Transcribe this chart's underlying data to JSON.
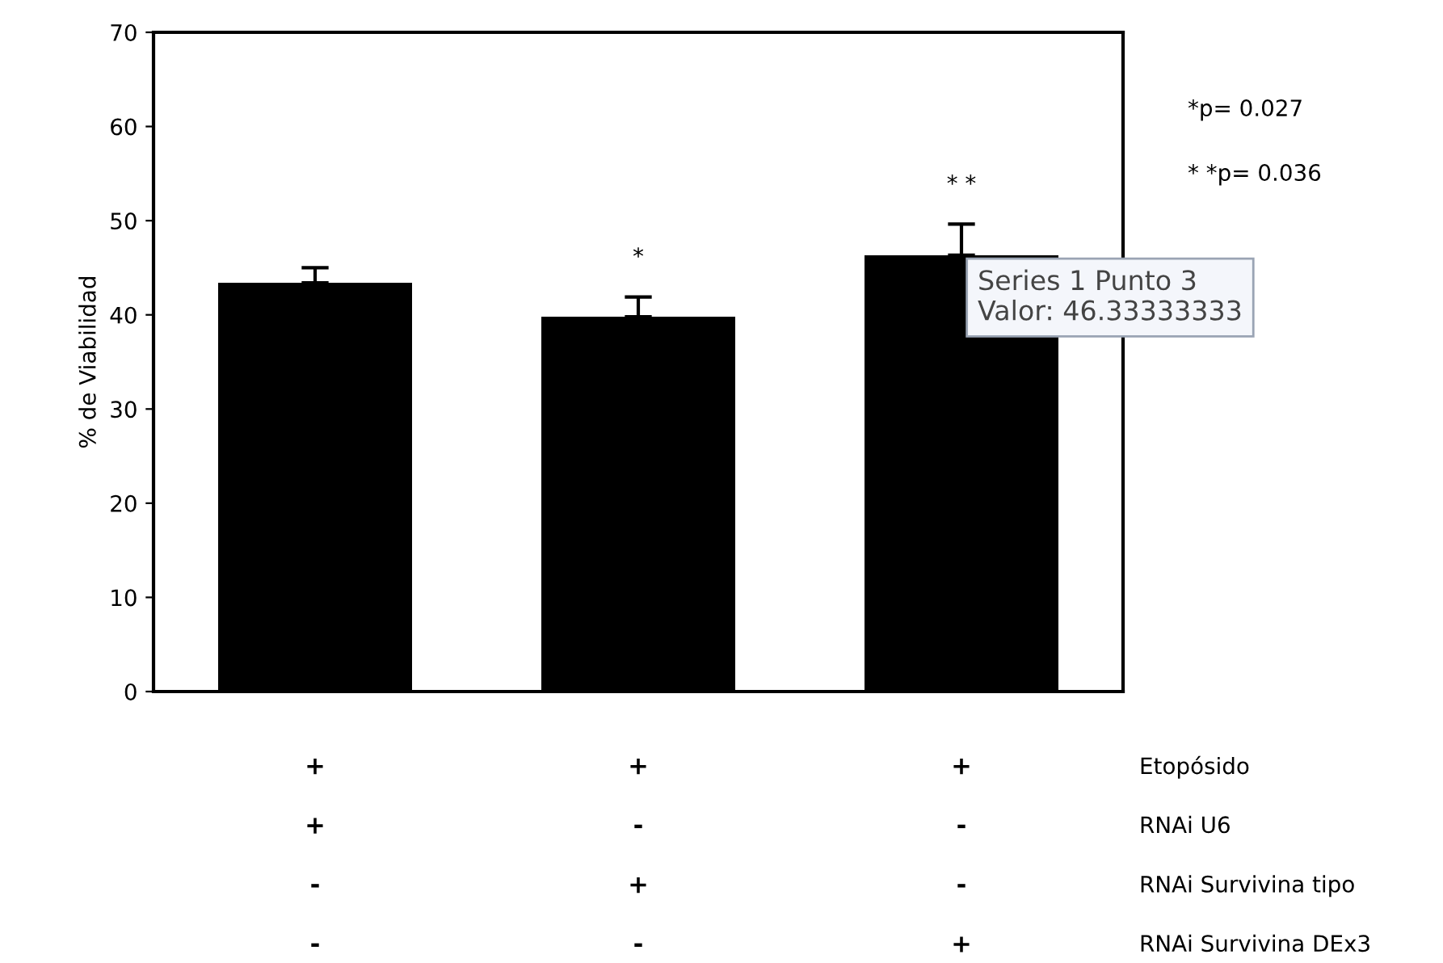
{
  "chart_data": {
    "type": "bar",
    "ylabel": "% de Viabilidad",
    "categories": [
      null,
      null,
      null
    ],
    "values": [
      43.4,
      39.8,
      46.33333333
    ],
    "errors": [
      1.6,
      2.1,
      3.3
    ],
    "color": "#000000",
    "ylim": [
      0,
      70
    ],
    "yticks": [
      0,
      10,
      20,
      30,
      40,
      50,
      60,
      70
    ],
    "grid": false,
    "legend": false,
    "annotations": [
      "*",
      "* *",
      "*p= 0.027",
      "* *p= 0.036",
      "Series 1 Punto 3\nValor: 46.33333333",
      "+",
      "+",
      "+",
      "Etopósido",
      "+",
      "-",
      "-",
      "RNAi U6",
      "-",
      "+",
      "-",
      "RNAi Survivina tipo",
      "-",
      "-",
      "+",
      "RNAi Survivina DEx3"
    ]
  }
}
